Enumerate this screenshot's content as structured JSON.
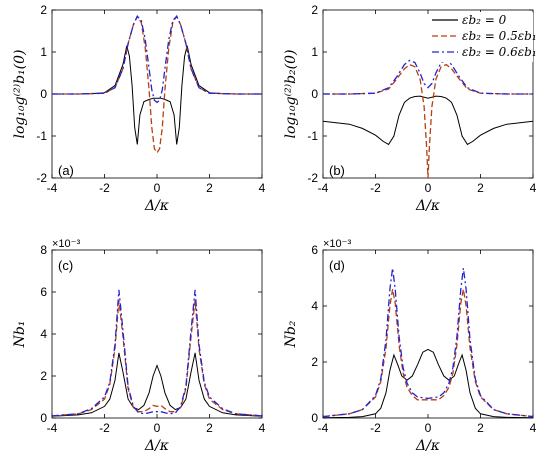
{
  "legend": {
    "entries": [
      {
        "label": "εb₂ = 0",
        "color": "#000000",
        "dash": "solid"
      },
      {
        "label": "εb₂ = 0.5εb₁",
        "color": "#b5400f",
        "dash": "dashed"
      },
      {
        "label": "εb₂ = 0.6εb₁",
        "color": "#2323d6",
        "dash": "dashdot"
      }
    ]
  },
  "chart_data": [
    {
      "panel": "(a)",
      "type": "line",
      "xlabel": "Δ/κ",
      "ylabel": "log₁₀g⁽²⁾b₁(0)",
      "xlim": [
        -4,
        4
      ],
      "ylim": [
        -2,
        2
      ],
      "xticks": [
        -4,
        -2,
        0,
        2,
        4
      ],
      "yticks": [
        -2,
        -1,
        0,
        1,
        2
      ],
      "multiplier": "",
      "series": [
        {
          "name": "εb₂ = 0",
          "x": [
            -4,
            -3,
            -2.5,
            -2,
            -1.6,
            -1.3,
            -1.15,
            -1.05,
            -0.95,
            -0.85,
            -0.75,
            -0.65,
            -0.5,
            -0.3,
            -0.15,
            0,
            0.15,
            0.3,
            0.5,
            0.65,
            0.75,
            0.85,
            0.95,
            1.05,
            1.15,
            1.3,
            1.6,
            2,
            2.5,
            3,
            4
          ],
          "y": [
            0,
            0,
            0.01,
            0.03,
            0.2,
            0.7,
            1.15,
            0.9,
            0.2,
            -0.8,
            -1.2,
            -0.5,
            -0.18,
            -0.13,
            -0.1,
            -0.1,
            -0.1,
            -0.13,
            -0.18,
            -0.5,
            -1.2,
            -0.8,
            0.2,
            0.9,
            1.15,
            0.7,
            0.2,
            0.03,
            0.01,
            0,
            0
          ]
        },
        {
          "name": "εb₂ = 0.5εb₁",
          "x": [
            -4,
            -3,
            -2,
            -1.6,
            -1.3,
            -1.1,
            -0.9,
            -0.75,
            -0.6,
            -0.45,
            -0.3,
            -0.2,
            -0.1,
            0,
            0.1,
            0.2,
            0.3,
            0.45,
            0.6,
            0.75,
            0.9,
            1.1,
            1.3,
            1.6,
            2,
            3,
            4
          ],
          "y": [
            0,
            0,
            0.02,
            0.15,
            0.6,
            1.2,
            1.65,
            1.85,
            1.7,
            1.1,
            0.1,
            -0.8,
            -1.3,
            -1.4,
            -1.3,
            -0.8,
            0.1,
            1.1,
            1.7,
            1.85,
            1.65,
            1.2,
            0.6,
            0.15,
            0.02,
            0,
            0
          ]
        },
        {
          "name": "εb₂ = 0.6εb₁",
          "x": [
            -4,
            -3,
            -2,
            -1.6,
            -1.3,
            -1.1,
            -0.9,
            -0.75,
            -0.6,
            -0.45,
            -0.3,
            -0.2,
            -0.1,
            0,
            0.1,
            0.2,
            0.3,
            0.45,
            0.6,
            0.75,
            0.9,
            1.1,
            1.3,
            1.6,
            2,
            3,
            4
          ],
          "y": [
            0,
            0,
            0.02,
            0.15,
            0.6,
            1.2,
            1.65,
            1.85,
            1.75,
            1.3,
            0.6,
            0.1,
            -0.15,
            -0.2,
            -0.15,
            0.1,
            0.6,
            1.3,
            1.75,
            1.85,
            1.65,
            1.2,
            0.6,
            0.15,
            0.02,
            0,
            0
          ]
        }
      ]
    },
    {
      "panel": "(b)",
      "type": "line",
      "xlabel": "Δ/κ",
      "ylabel": "log₁₀g⁽²⁾b₂(0)",
      "xlim": [
        -4,
        4
      ],
      "ylim": [
        -2,
        2
      ],
      "xticks": [
        -4,
        -2,
        0,
        2,
        4
      ],
      "yticks": [
        -2,
        -1,
        0,
        1,
        2
      ],
      "multiplier": "",
      "series": [
        {
          "name": "εb₂ = 0",
          "x": [
            -4,
            -3,
            -2.5,
            -2,
            -1.7,
            -1.5,
            -1.3,
            -1.1,
            -0.9,
            -0.7,
            -0.5,
            -0.3,
            0,
            0.3,
            0.5,
            0.7,
            0.9,
            1.1,
            1.3,
            1.5,
            1.7,
            2,
            2.5,
            3,
            4
          ],
          "y": [
            -0.65,
            -0.72,
            -0.82,
            -0.98,
            -1.13,
            -1.2,
            -1.0,
            -0.5,
            -0.2,
            -0.1,
            -0.06,
            -0.05,
            -0.1,
            -0.05,
            -0.06,
            -0.1,
            -0.2,
            -0.5,
            -1.0,
            -1.2,
            -1.13,
            -0.98,
            -0.82,
            -0.72,
            -0.65
          ]
        },
        {
          "name": "εb₂ = 0.5εb₁",
          "x": [
            -4,
            -3,
            -2,
            -1.5,
            -1.2,
            -0.9,
            -0.7,
            -0.5,
            -0.3,
            -0.15,
            -0.05,
            0,
            0.05,
            0.15,
            0.3,
            0.5,
            0.7,
            0.9,
            1.2,
            1.5,
            2,
            3,
            4
          ],
          "y": [
            0,
            0,
            0.02,
            0.12,
            0.35,
            0.6,
            0.7,
            0.65,
            0.35,
            -0.3,
            -1.3,
            -2.0,
            -1.3,
            -0.3,
            0.35,
            0.65,
            0.7,
            0.6,
            0.35,
            0.12,
            0.02,
            0,
            0
          ]
        },
        {
          "name": "εb₂ = 0.6εb₁",
          "x": [
            -4,
            -3,
            -2,
            -1.5,
            -1.2,
            -0.9,
            -0.7,
            -0.5,
            -0.3,
            -0.15,
            0,
            0.15,
            0.3,
            0.5,
            0.7,
            0.9,
            1.2,
            1.5,
            2,
            3,
            4
          ],
          "y": [
            0,
            0,
            0.02,
            0.15,
            0.4,
            0.7,
            0.8,
            0.75,
            0.5,
            0.25,
            0.15,
            0.25,
            0.5,
            0.75,
            0.8,
            0.7,
            0.4,
            0.15,
            0.02,
            0,
            0
          ]
        }
      ]
    },
    {
      "panel": "(c)",
      "type": "line",
      "xlabel": "Δ/κ",
      "ylabel": "Nb₁",
      "xlim": [
        -4,
        4
      ],
      "ylim": [
        0,
        8
      ],
      "xticks": [
        -4,
        -2,
        0,
        2,
        4
      ],
      "yticks": [
        0,
        2,
        4,
        6,
        8
      ],
      "multiplier": "×10⁻³",
      "series": [
        {
          "name": "εb₂ = 0",
          "x": [
            -4,
            -3,
            -2.5,
            -2,
            -1.8,
            -1.6,
            -1.45,
            -1.3,
            -1.1,
            -0.9,
            -0.7,
            -0.5,
            -0.3,
            -0.15,
            0,
            0.15,
            0.3,
            0.5,
            0.7,
            0.9,
            1.1,
            1.3,
            1.45,
            1.6,
            1.8,
            2,
            2.5,
            3,
            4
          ],
          "y": [
            0.08,
            0.15,
            0.25,
            0.55,
            0.9,
            1.8,
            3.1,
            2.2,
            0.9,
            0.5,
            0.4,
            0.6,
            1.2,
            2.0,
            2.5,
            2.0,
            1.2,
            0.6,
            0.4,
            0.5,
            0.9,
            2.2,
            3.1,
            1.8,
            0.9,
            0.55,
            0.25,
            0.15,
            0.08
          ]
        },
        {
          "name": "εb₂ = 0.5εb₁",
          "x": [
            -4,
            -3,
            -2.5,
            -2,
            -1.8,
            -1.6,
            -1.45,
            -1.3,
            -1.1,
            -0.9,
            -0.7,
            -0.5,
            -0.3,
            -0.15,
            0,
            0.15,
            0.3,
            0.5,
            0.7,
            0.9,
            1.1,
            1.3,
            1.45,
            1.6,
            1.8,
            2,
            2.5,
            3,
            4
          ],
          "y": [
            0.1,
            0.2,
            0.4,
            0.9,
            1.6,
            3.3,
            5.6,
            3.9,
            1.4,
            0.5,
            0.3,
            0.3,
            0.45,
            0.6,
            0.55,
            0.6,
            0.45,
            0.3,
            0.3,
            0.5,
            1.4,
            3.9,
            5.6,
            3.3,
            1.6,
            0.9,
            0.4,
            0.2,
            0.1
          ]
        },
        {
          "name": "εb₂ = 0.6εb₁",
          "x": [
            -4,
            -3,
            -2.5,
            -2,
            -1.8,
            -1.6,
            -1.45,
            -1.3,
            -1.1,
            -0.9,
            -0.7,
            -0.5,
            -0.3,
            -0.15,
            0,
            0.15,
            0.3,
            0.5,
            0.7,
            0.9,
            1.1,
            1.3,
            1.45,
            1.6,
            1.8,
            2,
            2.5,
            3,
            4
          ],
          "y": [
            0.1,
            0.2,
            0.45,
            1.0,
            1.7,
            3.5,
            6.1,
            4.2,
            1.5,
            0.55,
            0.25,
            0.2,
            0.25,
            0.3,
            0.3,
            0.3,
            0.25,
            0.2,
            0.25,
            0.55,
            1.5,
            4.2,
            6.1,
            3.5,
            1.7,
            1.0,
            0.45,
            0.2,
            0.1
          ]
        }
      ]
    },
    {
      "panel": "(d)",
      "type": "line",
      "xlabel": "Δ/κ",
      "ylabel": "Nb₂",
      "xlim": [
        -4,
        4
      ],
      "ylim": [
        0,
        6
      ],
      "xticks": [
        -4,
        -2,
        0,
        2,
        4
      ],
      "yticks": [
        0,
        2,
        4,
        6
      ],
      "multiplier": "×10⁻³",
      "series": [
        {
          "name": "εb₂ = 0",
          "x": [
            -4,
            -3,
            -2.5,
            -2,
            -1.8,
            -1.6,
            -1.45,
            -1.3,
            -1.15,
            -1.0,
            -0.8,
            -0.6,
            -0.4,
            -0.2,
            0,
            0.2,
            0.4,
            0.6,
            0.8,
            1.0,
            1.15,
            1.3,
            1.45,
            1.6,
            1.8,
            2,
            2.5,
            3,
            4
          ],
          "y": [
            0.01,
            0.02,
            0.05,
            0.15,
            0.35,
            0.9,
            1.7,
            2.25,
            1.9,
            1.5,
            1.35,
            1.5,
            1.9,
            2.35,
            2.45,
            2.35,
            1.9,
            1.5,
            1.35,
            1.5,
            1.9,
            2.25,
            1.7,
            0.9,
            0.35,
            0.15,
            0.05,
            0.02,
            0.01
          ]
        },
        {
          "name": "εb₂ = 0.5εb₁",
          "x": [
            -4,
            -3,
            -2.5,
            -2,
            -1.8,
            -1.6,
            -1.45,
            -1.35,
            -1.25,
            -1.1,
            -0.95,
            -0.8,
            -0.6,
            -0.4,
            0,
            0.4,
            0.6,
            0.8,
            0.95,
            1.1,
            1.25,
            1.35,
            1.45,
            1.6,
            1.8,
            2,
            2.5,
            3,
            4
          ],
          "y": [
            0.05,
            0.15,
            0.3,
            0.75,
            1.3,
            2.5,
            4.0,
            4.6,
            4.1,
            2.6,
            1.6,
            1.1,
            0.8,
            0.65,
            0.65,
            0.65,
            0.8,
            1.1,
            1.6,
            2.6,
            4.1,
            4.6,
            4.0,
            2.5,
            1.3,
            0.75,
            0.3,
            0.15,
            0.05
          ]
        },
        {
          "name": "εb₂ = 0.6εb₁",
          "x": [
            -4,
            -3,
            -2.5,
            -2,
            -1.8,
            -1.6,
            -1.45,
            -1.35,
            -1.25,
            -1.1,
            -0.95,
            -0.8,
            -0.6,
            -0.4,
            0,
            0.4,
            0.6,
            0.8,
            0.95,
            1.1,
            1.25,
            1.35,
            1.45,
            1.6,
            1.8,
            2,
            2.5,
            3,
            4
          ],
          "y": [
            0.05,
            0.15,
            0.3,
            0.8,
            1.4,
            2.8,
            4.6,
            5.35,
            4.6,
            2.9,
            1.8,
            1.25,
            0.9,
            0.75,
            0.7,
            0.75,
            0.9,
            1.25,
            1.8,
            2.9,
            4.6,
            5.35,
            4.6,
            2.8,
            1.4,
            0.8,
            0.3,
            0.15,
            0.05
          ]
        }
      ]
    }
  ]
}
